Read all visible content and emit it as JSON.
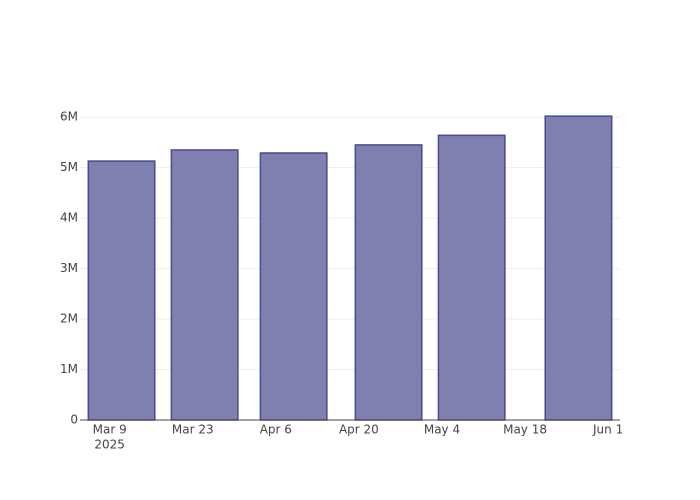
{
  "chart_data": {
    "type": "bar",
    "x": [
      "2025-03-11",
      "2025-03-25",
      "2025-04-09",
      "2025-04-25",
      "2025-05-09",
      "2025-05-27"
    ],
    "values": [
      5130000,
      5350000,
      5290000,
      5450000,
      5640000,
      6020000
    ],
    "color": "#7f7fb0",
    "line_color": "#4a4a8c",
    "xlim": [
      "2025-03-04",
      "2025-06-03"
    ],
    "xticks": [
      {
        "value": "2025-03-09",
        "label": "Mar 9"
      },
      {
        "value": "2025-03-23",
        "label": "Mar 23"
      },
      {
        "value": "2025-04-06",
        "label": "Apr 6"
      },
      {
        "value": "2025-04-20",
        "label": "Apr 20"
      },
      {
        "value": "2025-05-04",
        "label": "May 4"
      },
      {
        "value": "2025-05-18",
        "label": "May 18"
      },
      {
        "value": "2025-06-01",
        "label": "Jun 1"
      }
    ],
    "x_year_label": "2025",
    "ylim": [
      0,
      6340000
    ],
    "yticks": [
      0,
      {
        "value": 1000000,
        "label": "1M"
      },
      {
        "value": 2000000,
        "label": "2M"
      },
      {
        "value": 3000000,
        "label": "3M"
      },
      {
        "value": 4000000,
        "label": "4M"
      },
      {
        "value": 5000000,
        "label": "5M"
      },
      {
        "value": 6000000,
        "label": "6M"
      }
    ],
    "grid": true
  }
}
